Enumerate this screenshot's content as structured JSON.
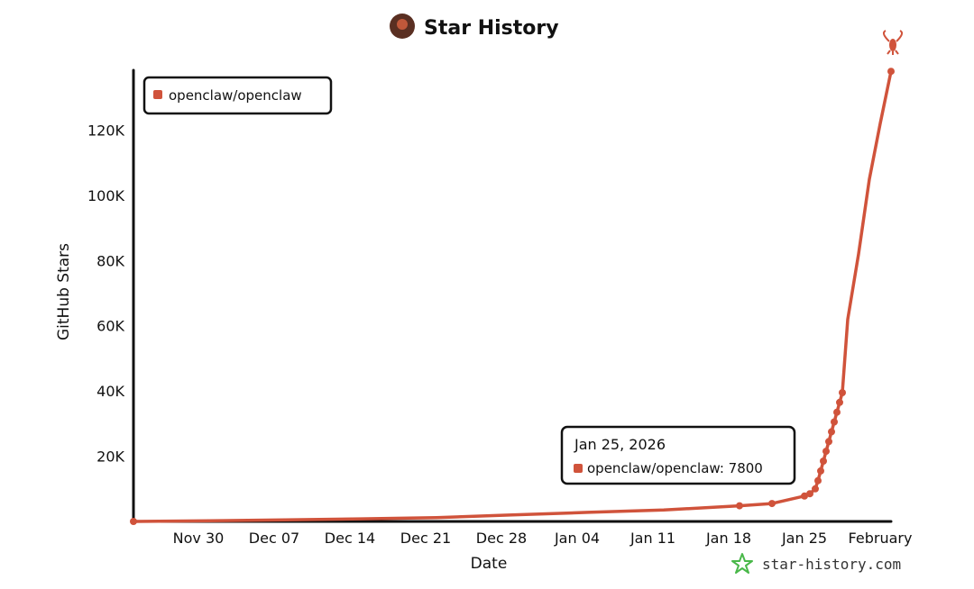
{
  "chart_data": {
    "type": "line",
    "title": "Star History",
    "xlabel": "Date",
    "ylabel": "GitHub Stars",
    "x_ticks": [
      "Nov 30",
      "Dec 07",
      "Dec 14",
      "Dec 21",
      "Dec 28",
      "Jan 04",
      "Jan 11",
      "Jan 18",
      "Jan 25",
      "February"
    ],
    "y_ticks": [
      "20K",
      "40K",
      "60K",
      "80K",
      "100K",
      "120K"
    ],
    "x_range": [
      "2025-11-24",
      "2026-02-02"
    ],
    "ylim": [
      0,
      140000
    ],
    "grid": false,
    "legend": "top-left",
    "series": [
      {
        "name": "openclaw/openclaw",
        "color": "#d0533b",
        "points": [
          {
            "x": "2025-11-24",
            "y": 0
          },
          {
            "x": "2025-12-01",
            "y": 200
          },
          {
            "x": "2025-12-08",
            "y": 500
          },
          {
            "x": "2025-12-15",
            "y": 800
          },
          {
            "x": "2025-12-22",
            "y": 1200
          },
          {
            "x": "2025-12-29",
            "y": 2000
          },
          {
            "x": "2026-01-05",
            "y": 2800
          },
          {
            "x": "2026-01-12",
            "y": 3500
          },
          {
            "x": "2026-01-19",
            "y": 4800
          },
          {
            "x": "2026-01-22",
            "y": 5500
          },
          {
            "x": "2026-01-25",
            "y": 7800
          },
          {
            "x": "2026-01-25T12:00",
            "y": 8500
          },
          {
            "x": "2026-01-26",
            "y": 10000
          },
          {
            "x": "2026-01-26T06:00",
            "y": 12500
          },
          {
            "x": "2026-01-26T12:00",
            "y": 15500
          },
          {
            "x": "2026-01-26T18:00",
            "y": 18500
          },
          {
            "x": "2026-01-27",
            "y": 21500
          },
          {
            "x": "2026-01-27T06:00",
            "y": 24500
          },
          {
            "x": "2026-01-27T12:00",
            "y": 27500
          },
          {
            "x": "2026-01-27T18:00",
            "y": 30500
          },
          {
            "x": "2026-01-28",
            "y": 33500
          },
          {
            "x": "2026-01-28T06:00",
            "y": 36500
          },
          {
            "x": "2026-01-28T12:00",
            "y": 39500
          },
          {
            "x": "2026-01-29",
            "y": 62000
          },
          {
            "x": "2026-01-30",
            "y": 82000
          },
          {
            "x": "2026-01-31",
            "y": 105000
          },
          {
            "x": "2026-02-01",
            "y": 122000
          },
          {
            "x": "2026-02-02",
            "y": 138000
          }
        ]
      }
    ]
  },
  "tooltip": {
    "date": "Jan 25, 2026",
    "text": "openclaw/openclaw: 7800"
  },
  "watermark": "star-history.com"
}
